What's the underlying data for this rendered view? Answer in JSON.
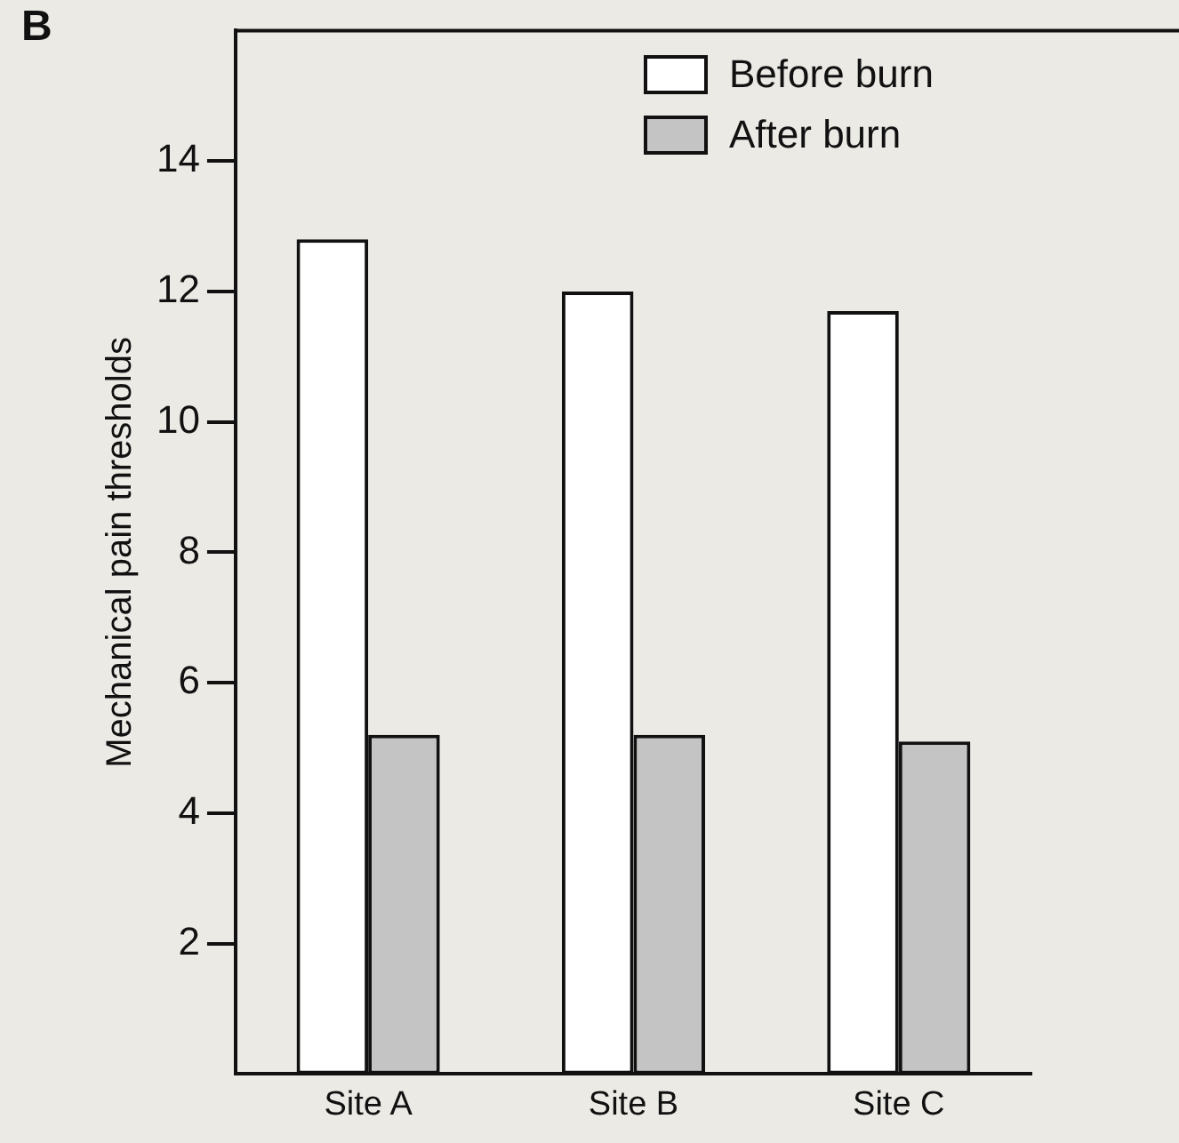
{
  "chart_data": {
    "type": "bar",
    "ylabel": "Mechanical pain thresholds",
    "annotations": [
      "B"
    ],
    "categories": [
      "Site A",
      "Site B",
      "Site C"
    ],
    "series": [
      {
        "name": "Before burn",
        "color": "#ffffff",
        "values": [
          12.8,
          12.0,
          11.7
        ]
      },
      {
        "name": "After burn",
        "color": "#c4c4c4",
        "values": [
          5.2,
          5.2,
          5.1
        ]
      }
    ],
    "ylim": [
      0,
      16
    ],
    "yticks": [
      2,
      4,
      6,
      8,
      10,
      12,
      14
    ],
    "grid": false,
    "legend": "top right"
  }
}
